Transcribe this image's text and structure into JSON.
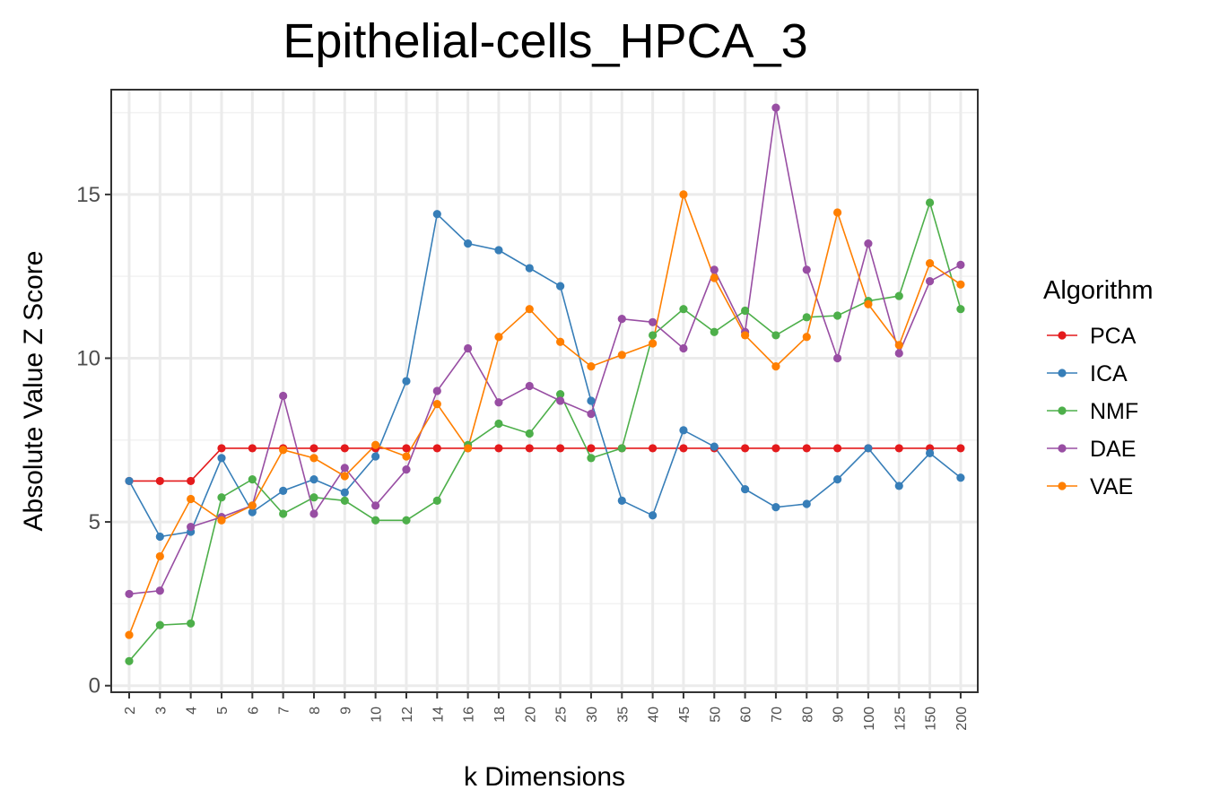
{
  "chart_data": {
    "type": "line",
    "title": "Epithelial-cells_HPCA_3",
    "xlabel": "k Dimensions",
    "ylabel": "Absolute Value Z Score",
    "categories": [
      "2",
      "3",
      "4",
      "5",
      "6",
      "7",
      "8",
      "9",
      "10",
      "12",
      "14",
      "16",
      "18",
      "20",
      "25",
      "30",
      "35",
      "40",
      "45",
      "50",
      "60",
      "70",
      "80",
      "90",
      "100",
      "125",
      "150",
      "200"
    ],
    "ylim": [
      -0.2,
      18.2
    ],
    "yticks": [
      0,
      5,
      10,
      15
    ],
    "grid": true,
    "legend_title": "Algorithm",
    "legend_position": "right",
    "series": [
      {
        "name": "PCA",
        "color": "#E41A1C",
        "values": [
          6.25,
          6.25,
          6.25,
          7.25,
          7.25,
          7.25,
          7.25,
          7.25,
          7.25,
          7.25,
          7.25,
          7.25,
          7.25,
          7.25,
          7.25,
          7.25,
          7.25,
          7.25,
          7.25,
          7.25,
          7.25,
          7.25,
          7.25,
          7.25,
          7.25,
          7.25,
          7.25,
          7.25
        ]
      },
      {
        "name": "ICA",
        "color": "#377EB8",
        "values": [
          6.25,
          4.55,
          4.7,
          6.95,
          5.3,
          5.95,
          6.3,
          5.9,
          7.0,
          9.3,
          14.4,
          13.5,
          13.3,
          12.75,
          12.2,
          8.7,
          5.65,
          5.2,
          7.8,
          7.3,
          6.0,
          5.45,
          5.55,
          6.3,
          7.25,
          6.1,
          7.1,
          6.35
        ]
      },
      {
        "name": "NMF",
        "color": "#4DAF4A",
        "values": [
          0.75,
          1.85,
          1.9,
          5.75,
          6.3,
          5.25,
          5.75,
          5.65,
          5.05,
          5.05,
          5.65,
          7.35,
          8.0,
          7.7,
          8.9,
          6.95,
          7.25,
          10.7,
          11.5,
          10.8,
          11.45,
          10.7,
          11.25,
          11.3,
          11.75,
          11.9,
          14.75,
          11.5
        ]
      },
      {
        "name": "DAE",
        "color": "#984EA3",
        "values": [
          2.8,
          2.9,
          4.85,
          5.15,
          5.5,
          8.85,
          5.25,
          6.65,
          5.5,
          6.6,
          9.0,
          10.3,
          8.65,
          9.15,
          8.7,
          8.3,
          11.2,
          11.1,
          10.3,
          12.7,
          10.8,
          17.65,
          12.7,
          10.0,
          13.5,
          10.15,
          12.35,
          12.85
        ]
      },
      {
        "name": "VAE",
        "color": "#FF7F00",
        "values": [
          1.55,
          3.95,
          5.7,
          5.05,
          5.5,
          7.2,
          6.95,
          6.4,
          7.35,
          7.0,
          8.6,
          7.25,
          10.65,
          11.5,
          10.5,
          9.75,
          10.1,
          10.45,
          15.0,
          12.45,
          10.7,
          9.75,
          10.65,
          14.45,
          11.65,
          10.4,
          12.9,
          12.25
        ]
      }
    ]
  }
}
